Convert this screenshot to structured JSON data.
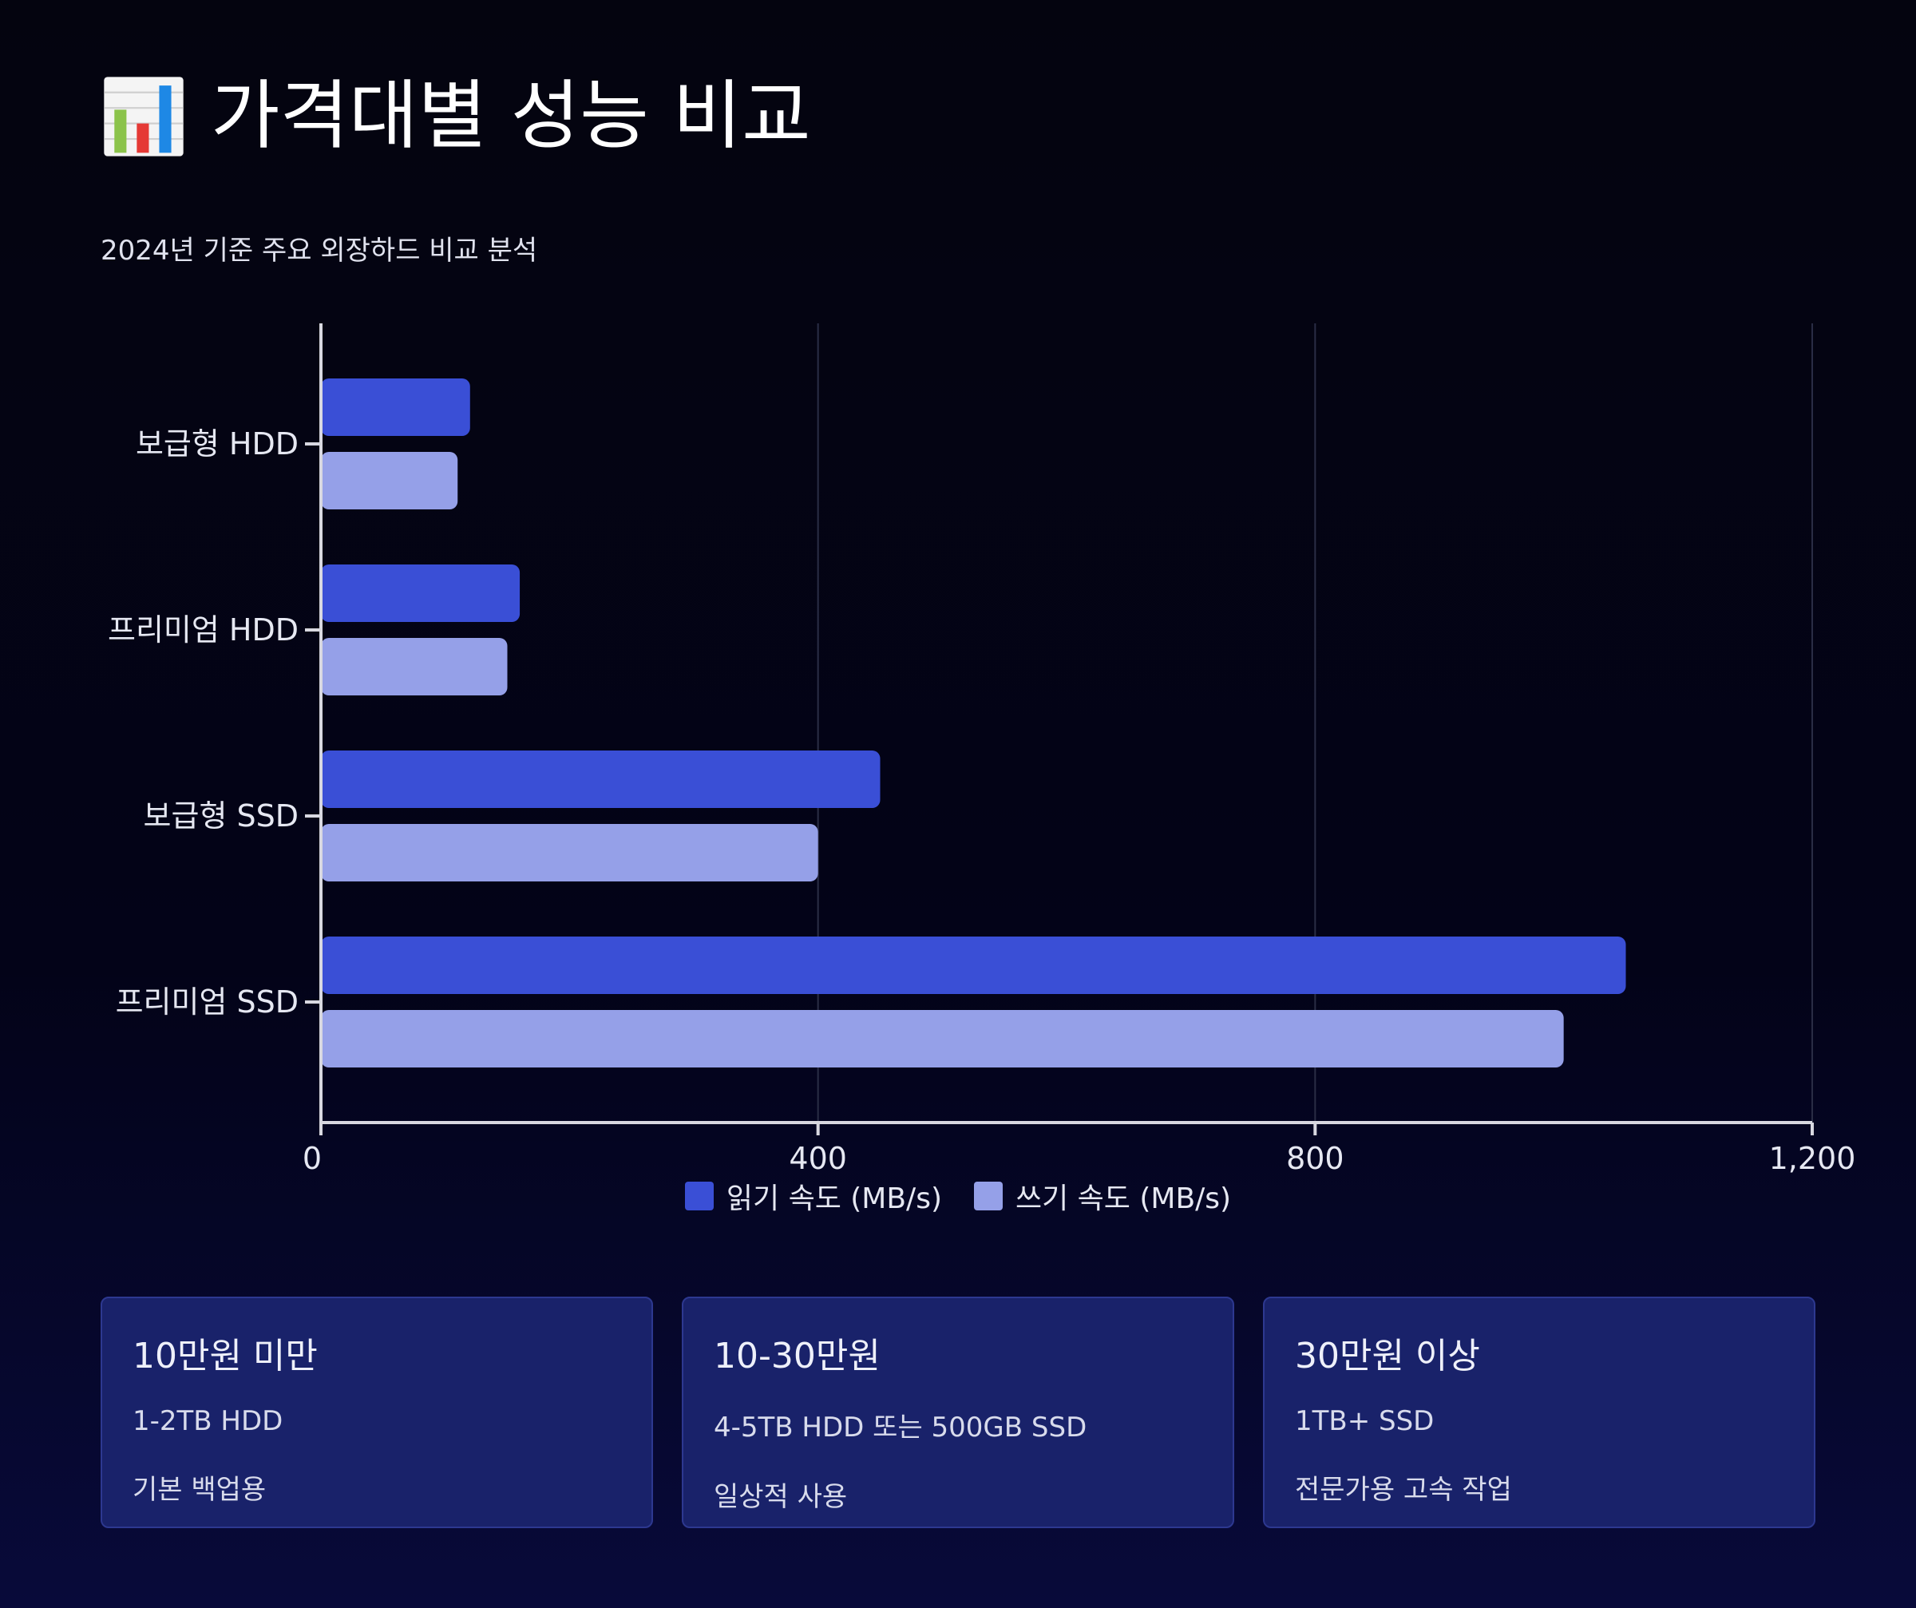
{
  "header": {
    "title": "가격대별 성능 비교",
    "icon": "bar-chart-icon",
    "subtitle": "2024년 기준 주요 외장하드 비교 분석"
  },
  "colors": {
    "read": "#3a4fd6",
    "write": "#95a0e8",
    "axis": "#d8d8e0",
    "grid": "#2a2d45",
    "text": "#e6e8f2"
  },
  "chart_data": {
    "type": "bar",
    "orientation": "horizontal",
    "categories": [
      "보급형 HDD",
      "프리미엄 HDD",
      "보급형 SSD",
      "프리미엄 SSD"
    ],
    "series": [
      {
        "name": "읽기 속도 (MB/s)",
        "values": [
          120,
          160,
          450,
          1050
        ]
      },
      {
        "name": "쓰기 속도 (MB/s)",
        "values": [
          110,
          150,
          400,
          1000
        ]
      }
    ],
    "xlim": [
      0,
      1200
    ],
    "xticks": [
      0,
      400,
      800,
      1200
    ],
    "xtick_labels": [
      "0",
      "400",
      "800",
      "1,200"
    ],
    "grid": true,
    "legend": "bottom"
  },
  "cards": [
    {
      "title": "10만원 미만",
      "line1": "1-2TB HDD",
      "line2": "기본 백업용"
    },
    {
      "title": "10-30만원",
      "line1": "4-5TB HDD 또는 500GB SSD",
      "line2": "일상적 사용"
    },
    {
      "title": "30만원 이상",
      "line1": "1TB+ SSD",
      "line2": "전문가용 고속 작업"
    }
  ]
}
